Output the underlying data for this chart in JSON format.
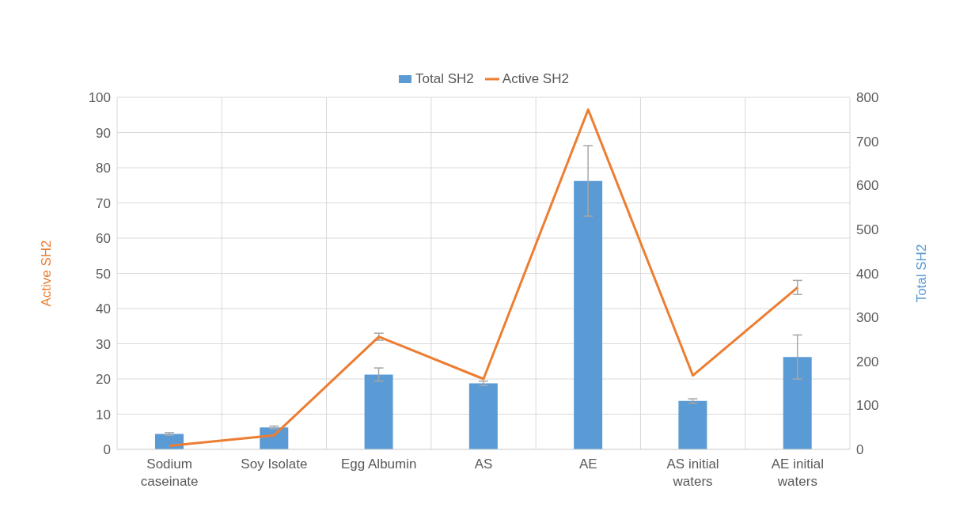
{
  "chart_data": {
    "type": "bar",
    "categories": [
      "Sodium caseinate",
      "Soy Isolate",
      "Egg Albumin",
      "AS",
      "AE",
      "AS initial waters",
      "AE initial waters"
    ],
    "ylabel": "Active SH2",
    "y2label": "Total SH2",
    "ylim": [
      0,
      100
    ],
    "yticks": [
      0,
      10,
      20,
      30,
      40,
      50,
      60,
      70,
      80,
      90,
      100
    ],
    "y2lim": [
      0,
      800
    ],
    "y2ticks": [
      0,
      100,
      200,
      300,
      400,
      500,
      600,
      700,
      800
    ],
    "grid": true,
    "legend": "top",
    "marker": "none",
    "series": [
      {
        "name": "Total SH2",
        "axis": "y2",
        "color": "#5b9bd5",
        "values": [
          35,
          50,
          170,
          150,
          610,
          110,
          210
        ],
        "errors": [
          3,
          3,
          15,
          5,
          80,
          5,
          50
        ]
      },
      {
        "name": "Active SH2",
        "type": "line",
        "color": "#ed7d31",
        "values": [
          1,
          4,
          32,
          20,
          96.5,
          21,
          46
        ],
        "errors": [
          null,
          null,
          1,
          null,
          null,
          null,
          2
        ]
      }
    ]
  }
}
